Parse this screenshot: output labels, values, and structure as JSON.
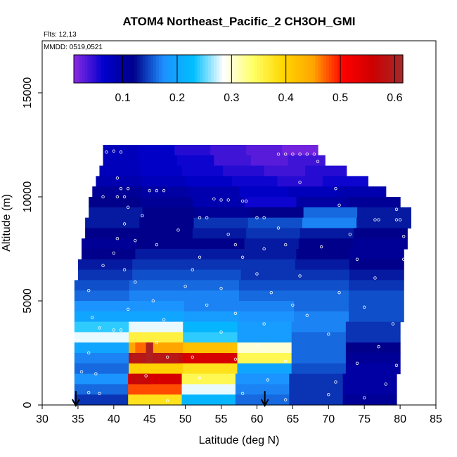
{
  "chart_data": {
    "type": "heatmap",
    "title": "ATOM4 Northeast_Pacific_2 CH3OH_GMI",
    "annotations": [
      "Flts: 12,13",
      "MMDD: 0519,0521"
    ],
    "xlabel": "Latitude (deg N)",
    "ylabel": "Altitude (m)",
    "xlim": [
      30,
      85
    ],
    "ylim": [
      0,
      17500
    ],
    "xticks": [
      30,
      35,
      40,
      45,
      50,
      55,
      60,
      65,
      70,
      75,
      80,
      85
    ],
    "yticks": [
      0,
      5000,
      10000,
      15000
    ],
    "colorbar": {
      "range": [
        0.01,
        0.615
      ],
      "ticks": [
        0.1,
        0.2,
        0.3,
        0.4,
        0.5,
        0.6
      ],
      "tick_labels": [
        "0.1",
        "0.2",
        "0.3",
        "0.4",
        "0.5",
        "0.6"
      ],
      "colors": [
        "#8a2be2",
        "#0000cd",
        "#00008b",
        "#1e90ff",
        "#00bfff",
        "#ffffff",
        "#ffff66",
        "#ffd700",
        "#ffa500",
        "#ff0000",
        "#cd0000",
        "#a52a2a"
      ]
    },
    "flight_markers_lat": [
      34.7,
      61.1
    ],
    "background_value": 0.15,
    "layers": [
      {
        "alt": [
          12000,
          12500
        ],
        "lat": [
          38.5,
          68.5
        ],
        "values": [
          0.08,
          0.07,
          0.05,
          0.04,
          0.03,
          0.02
        ]
      },
      {
        "alt": [
          11500,
          12000
        ],
        "lat": [
          38.5,
          69.5
        ],
        "values": [
          0.08,
          0.07,
          0.06,
          0.04,
          0.03,
          0.04
        ]
      },
      {
        "alt": [
          11000,
          11500
        ],
        "lat": [
          38.0,
          72.5
        ],
        "values": [
          0.08,
          0.07,
          0.06,
          0.05,
          0.04,
          0.05
        ]
      },
      {
        "alt": [
          10500,
          11000
        ],
        "lat": [
          37.5,
          75.5
        ],
        "values": [
          0.09,
          0.08,
          0.07,
          0.06,
          0.05,
          0.06
        ]
      },
      {
        "alt": [
          10000,
          10500
        ],
        "lat": [
          37.0,
          78.0
        ],
        "values": [
          0.11,
          0.1,
          0.09,
          0.07,
          0.08,
          0.09
        ]
      },
      {
        "alt": [
          9500,
          10000
        ],
        "lat": [
          36.5,
          80.0
        ],
        "values": [
          0.12,
          0.11,
          0.09,
          0.06,
          0.1,
          0.11
        ]
      },
      {
        "alt": [
          9000,
          9500
        ],
        "lat": [
          36.5,
          81.5
        ],
        "values": [
          0.13,
          0.12,
          0.11,
          0.12,
          0.16,
          0.13
        ]
      },
      {
        "alt": [
          8500,
          9000
        ],
        "lat": [
          36.0,
          81.5
        ],
        "values": [
          0.13,
          0.12,
          0.14,
          0.15,
          0.17,
          0.13
        ]
      },
      {
        "alt": [
          8000,
          8500
        ],
        "lat": [
          36.0,
          81.0
        ],
        "values": [
          0.12,
          0.12,
          0.13,
          0.14,
          0.13,
          0.12
        ]
      },
      {
        "alt": [
          7500,
          8000
        ],
        "lat": [
          35.5,
          81.0
        ],
        "values": [
          0.11,
          0.12,
          0.12,
          0.13,
          0.12,
          0.11
        ]
      },
      {
        "alt": [
          7000,
          7500
        ],
        "lat": [
          35.5,
          80.5
        ],
        "values": [
          0.12,
          0.13,
          0.13,
          0.13,
          0.12,
          0.11
        ]
      },
      {
        "alt": [
          6500,
          7000
        ],
        "lat": [
          35.0,
          80.5
        ],
        "values": [
          0.13,
          0.14,
          0.14,
          0.14,
          0.13,
          0.12
        ]
      },
      {
        "alt": [
          6000,
          6500
        ],
        "lat": [
          35.0,
          80.5
        ],
        "values": [
          0.14,
          0.15,
          0.15,
          0.14,
          0.14,
          0.13
        ]
      },
      {
        "alt": [
          5500,
          6000
        ],
        "lat": [
          34.5,
          80.5
        ],
        "values": [
          0.15,
          0.16,
          0.16,
          0.15,
          0.15,
          0.14
        ]
      },
      {
        "alt": [
          5000,
          5500
        ],
        "lat": [
          34.5,
          80.5
        ],
        "values": [
          0.16,
          0.17,
          0.17,
          0.16,
          0.16,
          0.15
        ]
      },
      {
        "alt": [
          4500,
          5000
        ],
        "lat": [
          34.5,
          80.5
        ],
        "values": [
          0.18,
          0.18,
          0.17,
          0.17,
          0.16,
          0.15
        ]
      },
      {
        "alt": [
          4000,
          4500
        ],
        "lat": [
          34.5,
          80.5
        ],
        "values": [
          0.2,
          0.2,
          0.19,
          0.18,
          0.17,
          0.15
        ]
      },
      {
        "alt": [
          3500,
          4000
        ],
        "lat": [
          34.5,
          80.0
        ],
        "values": [
          0.24,
          0.28,
          0.22,
          0.19,
          0.17,
          0.14
        ]
      },
      {
        "alt": [
          3000,
          3500
        ],
        "lat": [
          34.5,
          80.0
        ],
        "values": [
          0.28,
          0.36,
          0.24,
          0.19,
          0.16,
          0.14
        ]
      },
      {
        "alt": [
          2500,
          3000
        ],
        "lat": [
          34.5,
          80.0
        ],
        "values": [
          0.2,
          0.45,
          0.42,
          0.3,
          0.16,
          0.12
        ]
      },
      {
        "alt": [
          2000,
          2500
        ],
        "lat": [
          34.5,
          80.0
        ],
        "values": [
          0.17,
          0.58,
          0.55,
          0.35,
          0.16,
          0.11
        ]
      },
      {
        "alt": [
          1500,
          2000
        ],
        "lat": [
          34.5,
          80.0
        ],
        "values": [
          0.16,
          0.4,
          0.38,
          0.2,
          0.15,
          0.1
        ]
      },
      {
        "alt": [
          1000,
          1500
        ],
        "lat": [
          34.5,
          79.5
        ],
        "values": [
          0.18,
          0.55,
          0.35,
          0.18,
          0.14,
          0.1
        ]
      },
      {
        "alt": [
          500,
          1000
        ],
        "lat": [
          34.5,
          79.5
        ],
        "values": [
          0.16,
          0.48,
          0.28,
          0.17,
          0.14,
          0.1
        ]
      },
      {
        "alt": [
          0,
          500
        ],
        "lat": [
          34.5,
          79.5
        ],
        "values": [
          0.14,
          0.38,
          0.22,
          0.16,
          0.14,
          0.11
        ]
      }
    ],
    "hotspots": [
      {
        "lat": [
          42.5,
          49
        ],
        "alt": [
          2000,
          2500
        ],
        "value": 0.59
      },
      {
        "lat": [
          43,
          45.5
        ],
        "alt": [
          2500,
          3000
        ],
        "value": 0.47
      },
      {
        "lat": [
          42.5,
          45
        ],
        "alt": [
          1000,
          1500
        ],
        "value": 0.57
      },
      {
        "lat": [
          44.5,
          45.5
        ],
        "alt": [
          2000,
          3000
        ],
        "value": 0.6
      }
    ],
    "sample_points": [
      [
        39,
        12150
      ],
      [
        40,
        12200
      ],
      [
        41,
        12150
      ],
      [
        63,
        12050
      ],
      [
        64,
        12050
      ],
      [
        65,
        12050
      ],
      [
        66,
        12050
      ],
      [
        67,
        12050
      ],
      [
        68,
        12050
      ],
      [
        68.5,
        11700
      ],
      [
        40.5,
        10900
      ],
      [
        66,
        10700
      ],
      [
        71,
        10400
      ],
      [
        41,
        10400
      ],
      [
        42,
        10400
      ],
      [
        45,
        10300
      ],
      [
        46,
        10300
      ],
      [
        47,
        10300
      ],
      [
        40.5,
        10000
      ],
      [
        41.5,
        10000
      ],
      [
        38.5,
        10000
      ],
      [
        54,
        9900
      ],
      [
        55,
        9850
      ],
      [
        56,
        9850
      ],
      [
        58,
        9800
      ],
      [
        58.5,
        9800
      ],
      [
        71.5,
        9600
      ],
      [
        79.5,
        9400
      ],
      [
        42,
        9500
      ],
      [
        44,
        9100
      ],
      [
        52,
        9000
      ],
      [
        53,
        9000
      ],
      [
        60,
        9000
      ],
      [
        61,
        9000
      ],
      [
        76.5,
        8900
      ],
      [
        77,
        8900
      ],
      [
        79.5,
        8900
      ],
      [
        80,
        8900
      ],
      [
        41.5,
        8700
      ],
      [
        63,
        8500
      ],
      [
        49,
        8400
      ],
      [
        56,
        8200
      ],
      [
        73,
        8200
      ],
      [
        80.5,
        8100
      ],
      [
        40.5,
        8000
      ],
      [
        43,
        7900
      ],
      [
        46,
        7700
      ],
      [
        57,
        7700
      ],
      [
        64,
        7700
      ],
      [
        69,
        7600
      ],
      [
        61,
        7500
      ],
      [
        40,
        7300
      ],
      [
        52,
        7100
      ],
      [
        58,
        7100
      ],
      [
        74,
        7000
      ],
      [
        80.5,
        7000
      ],
      [
        38.5,
        6700
      ],
      [
        41.5,
        6500
      ],
      [
        51,
        6500
      ],
      [
        60,
        6300
      ],
      [
        66,
        6200
      ],
      [
        76.5,
        6100
      ],
      [
        43,
        5900
      ],
      [
        50,
        5700
      ],
      [
        55,
        5600
      ],
      [
        36.5,
        5500
      ],
      [
        62,
        5400
      ],
      [
        71.5,
        5400
      ],
      [
        45.5,
        5000
      ],
      [
        53,
        4800
      ],
      [
        65,
        4800
      ],
      [
        75,
        4700
      ],
      [
        42,
        4600
      ],
      [
        57,
        4400
      ],
      [
        67,
        4300
      ],
      [
        37,
        4200
      ],
      [
        47,
        4100
      ],
      [
        61,
        3900
      ],
      [
        79,
        3900
      ],
      [
        38,
        3700
      ],
      [
        40,
        3600
      ],
      [
        41,
        3600
      ],
      [
        55,
        3500
      ],
      [
        70,
        3400
      ],
      [
        35,
        3100
      ],
      [
        46,
        3000
      ],
      [
        60,
        2900
      ],
      [
        77,
        2800
      ],
      [
        36.5,
        2500
      ],
      [
        47.5,
        2300
      ],
      [
        51,
        2300
      ],
      [
        57,
        2200
      ],
      [
        64,
        2100
      ],
      [
        74,
        2000
      ],
      [
        79.5,
        1900
      ],
      [
        35.5,
        1600
      ],
      [
        37.5,
        1500
      ],
      [
        44.5,
        1400
      ],
      [
        52,
        1300
      ],
      [
        61.5,
        1200
      ],
      [
        71,
        1100
      ],
      [
        78,
        1000
      ],
      [
        36.5,
        600
      ],
      [
        38,
        550
      ],
      [
        58,
        550
      ],
      [
        70,
        500
      ],
      [
        75,
        350
      ],
      [
        80,
        300
      ],
      [
        64,
        250
      ],
      [
        47.5,
        200
      ]
    ]
  }
}
